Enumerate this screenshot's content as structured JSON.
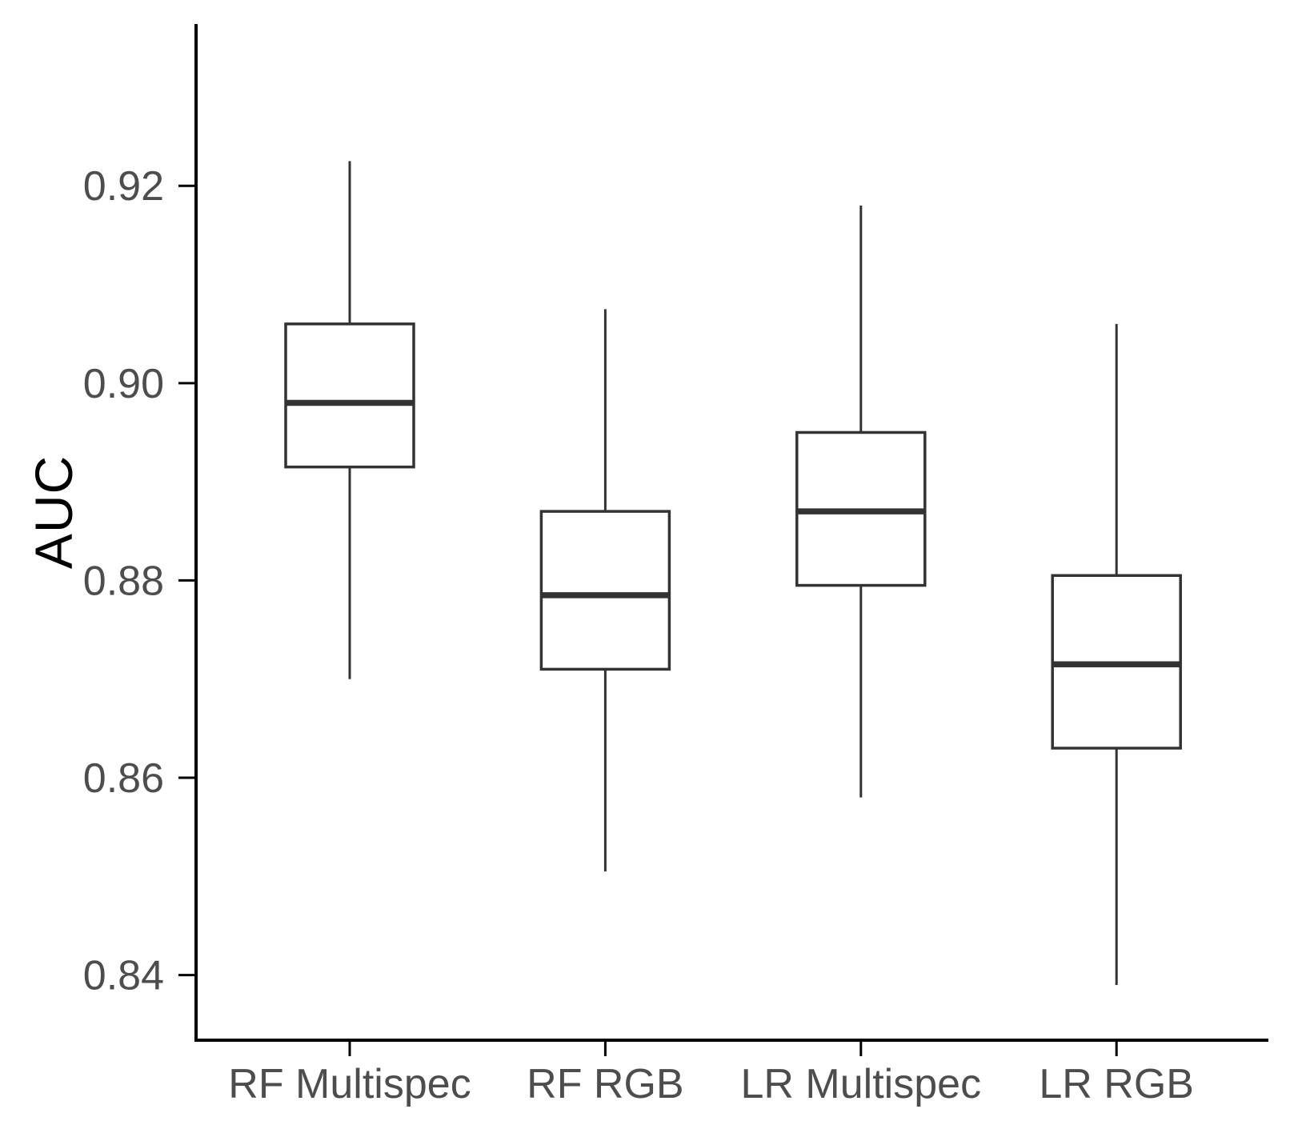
{
  "figure": {
    "background_color": "#ffffff"
  },
  "chart_data": {
    "type": "boxplot",
    "title": "",
    "xlabel": "",
    "ylabel": "AUC",
    "categories": [
      "RF Multispec",
      "RF RGB",
      "LR Multispec",
      "LR RGB"
    ],
    "series": [
      {
        "label": "RF Multispec",
        "whisker_low": 0.87,
        "q1": 0.8915,
        "median": 0.898,
        "q3": 0.906,
        "whisker_high": 0.9225
      },
      {
        "label": "RF RGB",
        "whisker_low": 0.8505,
        "q1": 0.871,
        "median": 0.8785,
        "q3": 0.887,
        "whisker_high": 0.9075
      },
      {
        "label": "LR Multispec",
        "whisker_low": 0.858,
        "q1": 0.8795,
        "median": 0.887,
        "q3": 0.895,
        "whisker_high": 0.918
      },
      {
        "label": "LR RGB",
        "whisker_low": 0.839,
        "q1": 0.863,
        "median": 0.8715,
        "q3": 0.8805,
        "whisker_high": 0.906
      }
    ],
    "y_ticks": [
      0.92,
      0.9,
      0.88,
      0.86,
      0.84
    ],
    "y_tick_labels": [
      "0.92",
      "0.90",
      "0.88",
      "0.86",
      "0.84"
    ],
    "ylim": [
      0.8334,
      0.9364
    ],
    "grid": false,
    "legend": false,
    "box_fill": "#ffffff",
    "box_stroke": "#333333",
    "median_color": "#333333",
    "whisker_color": "#333333",
    "axis_line_color": "#000000",
    "tick_label_color": "#4d4d4d",
    "axis_title_color": "#000000"
  }
}
